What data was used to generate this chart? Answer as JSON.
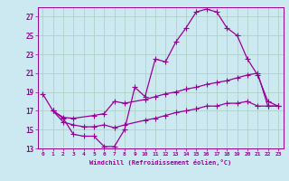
{
  "xlabel": "Windchill (Refroidissement éolien,°C)",
  "bg_color": "#cce8f0",
  "grid_color": "#a8cfc0",
  "line_color": "#990099",
  "xlim": [
    -0.5,
    23.5
  ],
  "ylim": [
    13,
    28
  ],
  "xticks": [
    0,
    1,
    2,
    3,
    4,
    5,
    6,
    7,
    8,
    9,
    10,
    11,
    12,
    13,
    14,
    15,
    16,
    17,
    18,
    19,
    20,
    21,
    22,
    23
  ],
  "yticks": [
    13,
    15,
    17,
    19,
    21,
    23,
    25,
    27
  ],
  "line1_x": [
    0,
    1,
    2,
    3,
    4,
    5,
    6,
    7,
    8,
    9,
    10,
    11,
    12,
    13,
    14,
    15,
    16,
    17,
    18,
    19,
    20,
    21,
    22,
    23
  ],
  "line1_y": [
    18.8,
    17.0,
    16.2,
    14.5,
    14.3,
    14.3,
    13.2,
    13.2,
    15.0,
    19.5,
    18.5,
    22.5,
    22.2,
    24.3,
    25.8,
    27.5,
    27.8,
    27.5,
    25.8,
    25.0,
    22.5,
    20.8,
    18.0,
    17.5
  ],
  "line2_x": [
    1,
    2,
    3,
    5,
    6,
    7,
    8,
    10,
    11,
    12,
    13,
    14,
    15,
    16,
    17,
    18,
    19,
    20,
    21,
    22,
    23
  ],
  "line2_y": [
    17.0,
    16.3,
    16.2,
    16.5,
    16.7,
    18.0,
    17.8,
    18.2,
    18.5,
    18.8,
    19.0,
    19.3,
    19.5,
    19.8,
    20.0,
    20.2,
    20.5,
    20.8,
    21.0,
    17.5,
    17.5
  ],
  "line3_x": [
    1,
    2,
    3,
    4,
    5,
    6,
    7,
    8,
    10,
    11,
    12,
    13,
    14,
    15,
    16,
    17,
    18,
    19,
    20,
    21,
    22,
    23
  ],
  "line3_y": [
    17.0,
    15.8,
    15.5,
    15.3,
    15.3,
    15.5,
    15.2,
    15.5,
    16.0,
    16.2,
    16.5,
    16.8,
    17.0,
    17.2,
    17.5,
    17.5,
    17.8,
    17.8,
    18.0,
    17.5,
    17.5,
    17.5
  ]
}
